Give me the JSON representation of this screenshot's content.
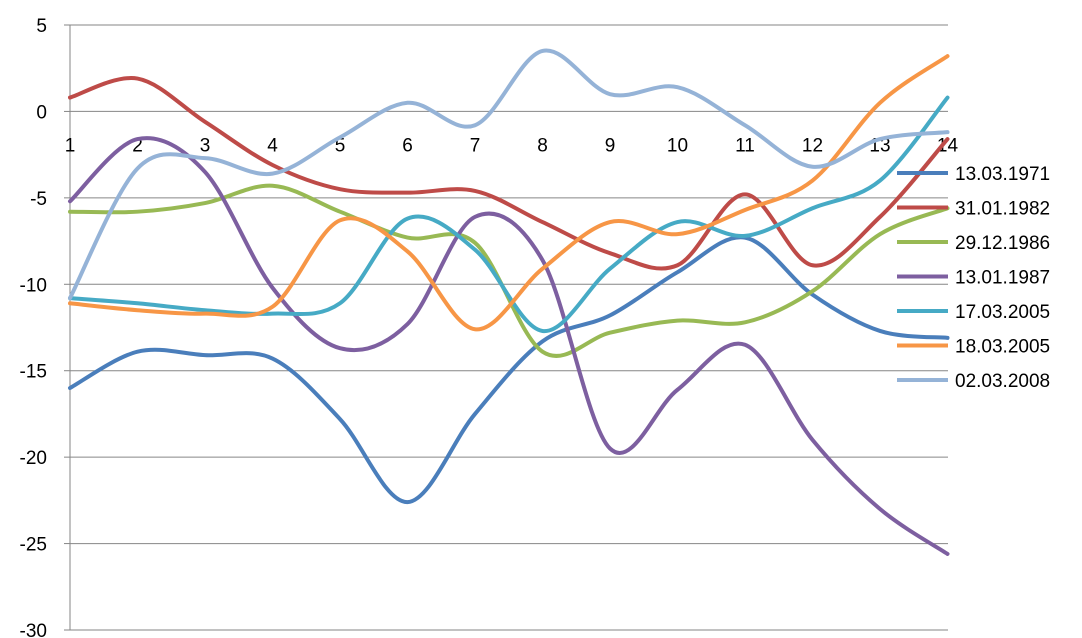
{
  "chart_data": {
    "type": "line",
    "smooth": true,
    "title": "",
    "xlabel": "",
    "ylabel": "",
    "x": [
      1,
      2,
      3,
      4,
      5,
      6,
      7,
      8,
      9,
      10,
      11,
      12,
      13,
      14
    ],
    "x_tick_labels": [
      "1",
      "2",
      "3",
      "4",
      "5",
      "6",
      "7",
      "8",
      "9",
      "10",
      "11",
      "12",
      "13",
      "14"
    ],
    "ylim": [
      -30,
      5
    ],
    "y_ticks": [
      5,
      0,
      -5,
      -10,
      -15,
      -20,
      -25,
      -30
    ],
    "y_tick_labels": [
      "5",
      "0",
      "-5",
      "-10",
      "-15",
      "-20",
      "-25",
      "-30"
    ],
    "x_axis_crosses_at": 0,
    "grid": "horizontal",
    "legend_position": "right",
    "series": [
      {
        "name": "13.03.1971",
        "color": "#4A7EBB",
        "values": [
          -16.0,
          -13.9,
          -14.1,
          -14.3,
          -17.8,
          -22.6,
          -17.5,
          -13.3,
          -11.8,
          -9.3,
          -7.3,
          -10.6,
          -12.7,
          -13.1
        ]
      },
      {
        "name": "31.01.1982",
        "color": "#BE4B48",
        "values": [
          0.8,
          1.9,
          -0.6,
          -3.1,
          -4.5,
          -4.7,
          -4.6,
          -6.4,
          -8.2,
          -8.9,
          -4.8,
          -8.9,
          -6.1,
          -1.6
        ]
      },
      {
        "name": "29.12.1986",
        "color": "#98B954",
        "values": [
          -5.8,
          -5.8,
          -5.3,
          -4.3,
          -5.8,
          -7.3,
          -7.6,
          -13.9,
          -12.8,
          -12.1,
          -12.2,
          -10.4,
          -7.1,
          -5.6
        ]
      },
      {
        "name": "13.01.1987",
        "color": "#7D5FA0",
        "values": [
          -5.2,
          -1.6,
          -3.5,
          -10.2,
          -13.7,
          -12.3,
          -6.1,
          -8.6,
          -19.5,
          -16.1,
          -13.5,
          -19.0,
          -23.0,
          -25.6
        ]
      },
      {
        "name": "17.03.2005",
        "color": "#46AAC5",
        "values": [
          -10.8,
          -11.1,
          -11.5,
          -11.7,
          -11.1,
          -6.2,
          -8.0,
          -12.7,
          -9.1,
          -6.4,
          -7.2,
          -5.6,
          -4.0,
          0.8
        ]
      },
      {
        "name": "18.03.2005",
        "color": "#F79646",
        "values": [
          -11.1,
          -11.5,
          -11.7,
          -11.3,
          -6.3,
          -8.1,
          -12.6,
          -9.1,
          -6.4,
          -7.1,
          -5.7,
          -4.0,
          0.5,
          3.2
        ]
      },
      {
        "name": "02.03.2008",
        "color": "#95B3D7",
        "values": [
          -10.8,
          -3.3,
          -2.7,
          -3.6,
          -1.5,
          0.5,
          -0.8,
          3.5,
          1.0,
          1.4,
          -0.8,
          -3.2,
          -1.6,
          -1.2
        ]
      }
    ]
  }
}
